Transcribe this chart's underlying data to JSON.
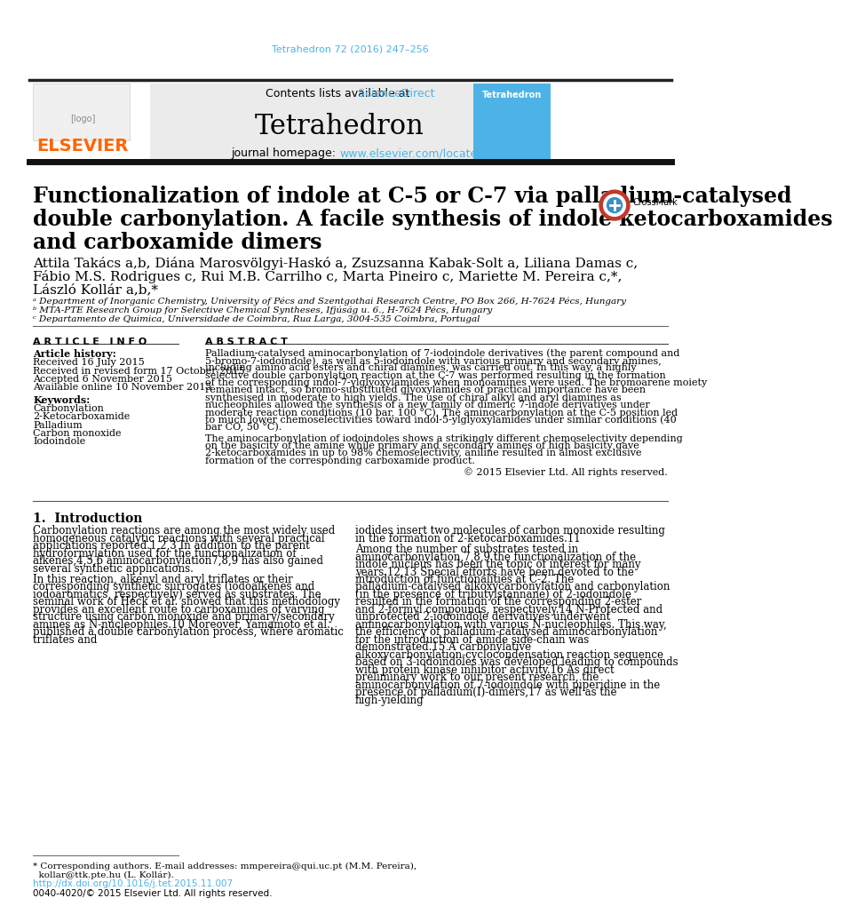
{
  "page_bg": "#ffffff",
  "top_citation": "Tetrahedron 72 (2016) 247–256",
  "top_citation_color": "#4db3e6",
  "journal_header_bg": "#ebebeb",
  "journal_name": "Tetrahedron",
  "contents_text": "Contents lists available at ",
  "sciencedirect_text": "ScienceDirect",
  "sciencedirect_color": "#4db3e6",
  "homepage_plain": "journal homepage: ",
  "homepage_url": "www.elsevier.com/locate/tet",
  "homepage_url_color": "#4db3e6",
  "elsevier_color": "#ff6600",
  "title_line1": "Functionalization of indole at C-5 or C-7 via palladium-catalysed",
  "title_line2": "double carbonylation. A facile synthesis of indole ketocarboxamides",
  "title_line3": "and carboxamide dimers",
  "author_line1": "Attila Takács a,b, Diána Marosvölgyi-Haskó a, Zsuzsanna Kabak-Solt a, Liliana Damas c,",
  "author_line2": "Fábio M.S. Rodrigues c, Rui M.B. Carrilho c, Marta Pineiro c, Mariette M. Pereira c,*,",
  "author_line3": "László Kollár a,b,*",
  "affil_a": "ᵃ Department of Inorganic Chemistry, University of Pécs and Szentgothai Research Centre, PO Box 266, H-7624 Pécs, Hungary",
  "affil_b": "ᵇ MTA-PTE Research Group for Selective Chemical Syntheses, Ifjúság u. 6., H-7624 Pécs, Hungary",
  "affil_c": "ᶜ Departamento de Quimica, Universidade de Coimbra, Rua Larga, 3004-535 Coimbra, Portugal",
  "article_info_header": "A R T I C L E   I N F O",
  "abstract_header": "A B S T R A C T",
  "article_history_label": "Article history:",
  "received": "Received 16 July 2015",
  "received_revised": "Received in revised form 17 October 2015",
  "accepted": "Accepted 6 November 2015",
  "available": "Available online 10 November 2015",
  "keywords_label": "Keywords:",
  "keywords": [
    "Carbonylation",
    "2-Ketocarboxamide",
    "Palladium",
    "Carbon monoxide",
    "Iodoindole"
  ],
  "abstract_para1": "Palladium-catalysed aminocarbonylation of 7-iodoindole derivatives (the parent compound and 5-bromo-7-iodoindole), as well as 5-iodoindole with various primary and secondary amines, including amino acid esters and chiral diamines, was carried out. In this way, a highly selective double carbonylation reaction at the C-7 was performed resulting in the formation of the corresponding indol-7-ylglyoxylamides when monoamines were used. The bromoarene moiety remained intact, so bromo-substituted glyoxylamides of practical importance have been synthesised in moderate to high yields. The use of chiral alkyl and aryl diamines as nucheophiles allowed the synthesis of a new family of dimeric 7-indole derivatives under moderate reaction conditions (10 bar, 100 °C). The aminocarbonylation at the C-5 position led to much lower chemoselectivities toward indol-5-ylglyoxylamides under similar conditions (40 bar CO, 50 °C).",
  "abstract_para2": "The aminocarbonylation of iodoindoles shows a strikingly different chemoselectivity depending on the basicity of the amine while primary and secondary amines of high basicity gave 2-ketocarboxamides in up to 98% chemoselectivity, aniline resulted in almost exclusive formation of the corresponding carboxamide product.",
  "copyright_abstract": "© 2015 Elsevier Ltd. All rights reserved.",
  "section1_header": "1.  Introduction",
  "intro_col1_para1": "Carbonylation reactions are among the most widely used homogeneous catalytic reactions with several practical applications reported.1,2,3 In addition to the parent hydroformylation used for the functionalization of alkenes,4,5,6 aminocarbonylation7,8,9 has also gained several synthetic applications.",
  "intro_col1_para2": "In this reaction, alkenyl and aryl triflates or their corresponding synthetic surrogates (iodoalkenes and iodoaromatics, respectively) served as substrates. The seminal work of Heck et al. showed that this methodology provides an excellent route to carboxamides of varying structure using carbon monoxide and primary/secondary amines as N-nucleophiles.10 Moreover, Yamamoto et al. published a double carbonylation process, where aromatic triflates and",
  "intro_col2_para1": "iodides insert two molecules of carbon monoxide resulting in the formation of 2-ketocarboxamides.11",
  "intro_col2_para2": "Among the number of substrates tested in aminocarbonylation,7,8,9 the functionalization of the indole nucleus has been the topic of interest for many years.12,13 Special efforts have been devoted to the introduction of functionalities at C-2. The palladium-catalysed alkoxycarbonylation and carbonylation (in the presence of tributylstannane) of 2-iodoindole resulted in the formation of the corresponding 2-ester and 2-formyl compounds, respectively.14 N-Protected and unprotected 2-iodoindole derivatives underwent aminocarbonylation with various N-nucleophiles. This way, the efficiency of palladium-catalysed aminocarbonylation for the introduction of amide side-chain was demonstrated.15 A carbonylative alkoxycarbonylation-cyclocondensation reaction sequence based on 3-iodoindoles was developed leading to compounds with protein kinase inhibitor activity.16 As direct preliminary work to our present research, the aminocarbonylation of 7-iodoindole with piperidine in the presence of palladium(I)-dimers,17 as well as the high-yielding",
  "footnote_star": "* Corresponding authors. E-mail addresses: mmpereira@qui.uc.pt (M.M. Pereira),",
  "footnote_star2": "  kollar@ttk.pte.hu (L. Kollár).",
  "doi_text": "http://dx.doi.org/10.1016/j.tet.2015.11.007",
  "copyright_footer": "0040-4020/© 2015 Elsevier Ltd. All rights reserved."
}
